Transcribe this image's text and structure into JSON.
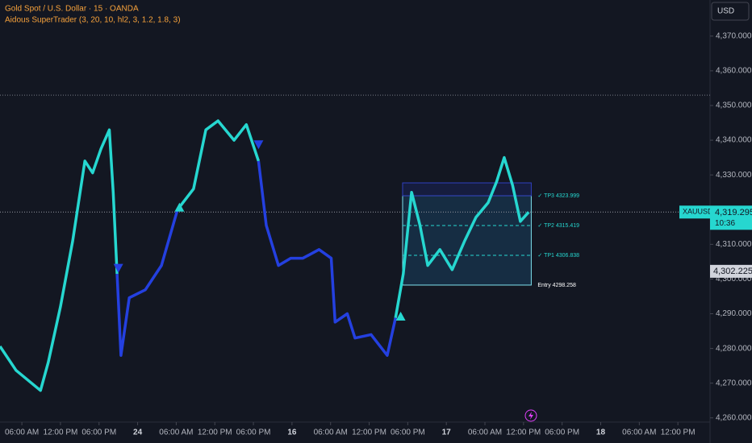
{
  "chart_data": {
    "type": "line",
    "title": "Gold Spot / U.S. Dollar · 15 · OANDA",
    "subtitle": "Aidous SuperTrader (3, 20, 10, hl2, 3, 1.2, 1.8, 3)",
    "currency": "USD",
    "symbol": "XAUUSD",
    "last_price": {
      "value": 4319.295,
      "label": "4,319.295"
    },
    "countdown": "10:36",
    "marker_price": {
      "value": 4302.225,
      "label": "4,302.225"
    },
    "previous_high": 4353,
    "x": [
      2.6,
      5.1,
      8.9,
      10.1,
      12.0,
      13.9,
      15.8,
      17.0,
      18.3,
      19.6,
      20.2,
      20.8,
      21.4,
      22.7,
      25.2,
      27.7,
      30.2,
      32.7,
      34.6,
      36.5,
      39.0,
      40.9,
      42.8,
      44.0,
      45.9,
      47.8,
      49.7,
      52.2,
      54.1,
      54.7,
      56.6,
      57.8,
      60.3,
      62.8,
      64.1,
      65.3,
      66.6,
      67.9,
      69.1,
      71.0,
      72.9,
      74.8,
      76.6,
      78.5,
      79.8,
      81.0,
      82.3,
      83.5,
      84.8
    ],
    "series": [
      {
        "color": "#26d7d0",
        "values": [
          4280.6,
          4273.7,
          4267.9,
          4276,
          4292,
          4311,
          4334,
          4330.6,
          4337.5,
          4343,
          4325,
          4301.5,
          null,
          null,
          null,
          null,
          4320,
          4326,
          4343,
          4345.6,
          4340,
          4344.5,
          4334,
          null,
          null,
          null,
          null,
          null,
          null,
          null,
          null,
          null,
          null,
          null,
          4288.8,
          4301.5,
          4325,
          4315.5,
          4303.9,
          4308.5,
          4302.7,
          4310.8,
          4317.8,
          4322,
          4328,
          4335,
          4327,
          4316.6,
          4319.3
        ]
      },
      {
        "color": "#2440e0",
        "values": [
          null,
          null,
          null,
          null,
          null,
          null,
          null,
          null,
          null,
          null,
          null,
          4301.5,
          4278,
          4294.6,
          4296.9,
          4303.9,
          4320,
          null,
          null,
          null,
          null,
          null,
          4334,
          4315.5,
          4303.9,
          4306,
          4306,
          4308.5,
          4306,
          4287.6,
          4290,
          4283,
          4284,
          4278,
          4288.8,
          null,
          null,
          null,
          null,
          null,
          null,
          null,
          null,
          null,
          null,
          null,
          null,
          null,
          null
        ]
      }
    ],
    "signals": {
      "buy": [
        {
          "x": 30.5,
          "y": 4320.6
        },
        {
          "x": 64.9,
          "y": 4289.2
        }
      ],
      "sell": [
        {
          "x": 21.0,
          "y": 4303.2
        },
        {
          "x": 42.8,
          "y": 4338.8
        }
      ]
    },
    "trade": {
      "x": [
        65.2,
        85.2
      ],
      "levels": [
        {
          "label": "✓ TP3 4323.999",
          "value": 4323.999,
          "color": "#26d7d0"
        },
        {
          "label": "✓ TP2 4315.419",
          "value": 4315.419,
          "color": "#26d7d0"
        },
        {
          "label": "✓ TP1 4306.838",
          "value": 4306.838,
          "color": "#26d7d0"
        },
        {
          "label": "Entry 4298.258",
          "value": 4298.258,
          "color": "#ffffff"
        }
      ]
    },
    "xlim": [
      2.6,
      113
    ],
    "xticks": [
      {
        "value": 6,
        "label": "06:00 AM"
      },
      {
        "value": 12,
        "label": "12:00 PM"
      },
      {
        "value": 18,
        "label": "06:00 PM"
      },
      24,
      {
        "value": 30,
        "label": "06:00 AM"
      },
      {
        "value": 36,
        "label": "12:00 PM"
      },
      {
        "value": 42,
        "label": "06:00 PM"
      },
      {
        "value": 48,
        "label": "16"
      },
      {
        "value": 54,
        "label": "06:00 AM"
      },
      {
        "value": 60,
        "label": "12:00 PM"
      },
      {
        "value": 66,
        "label": "06:00 PM"
      },
      {
        "value": 72,
        "label": "17"
      },
      {
        "value": 78,
        "label": "06:00 AM"
      },
      {
        "value": 84,
        "label": "12:00 PM"
      },
      {
        "value": 90,
        "label": "06:00 PM"
      },
      {
        "value": 96,
        "label": "18"
      },
      {
        "value": 102,
        "label": "06:00 AM"
      },
      {
        "value": 108,
        "label": "12:00 PM"
      }
    ],
    "ylim": [
      4257.4,
      4380.4
    ],
    "yticks": [
      {
        "value": 4260,
        "label": "4,260.000"
      },
      {
        "value": 4270,
        "label": "4,270.000"
      },
      {
        "value": 4280,
        "label": "4,280.000"
      },
      {
        "value": 4290,
        "label": "4,290.000"
      },
      {
        "value": 4300,
        "label": "4,300.000"
      },
      {
        "value": 4310,
        "label": "4,310.000"
      },
      {
        "value": 4320,
        "label": "4,320.000"
      },
      {
        "value": 4330,
        "label": "4,330.000"
      },
      {
        "value": 4340,
        "label": "4,340.000"
      },
      {
        "value": 4350,
        "label": "4,350.000"
      },
      {
        "value": 4360,
        "label": "4,360.000"
      },
      {
        "value": 4370,
        "label": "4,370.000"
      }
    ]
  }
}
